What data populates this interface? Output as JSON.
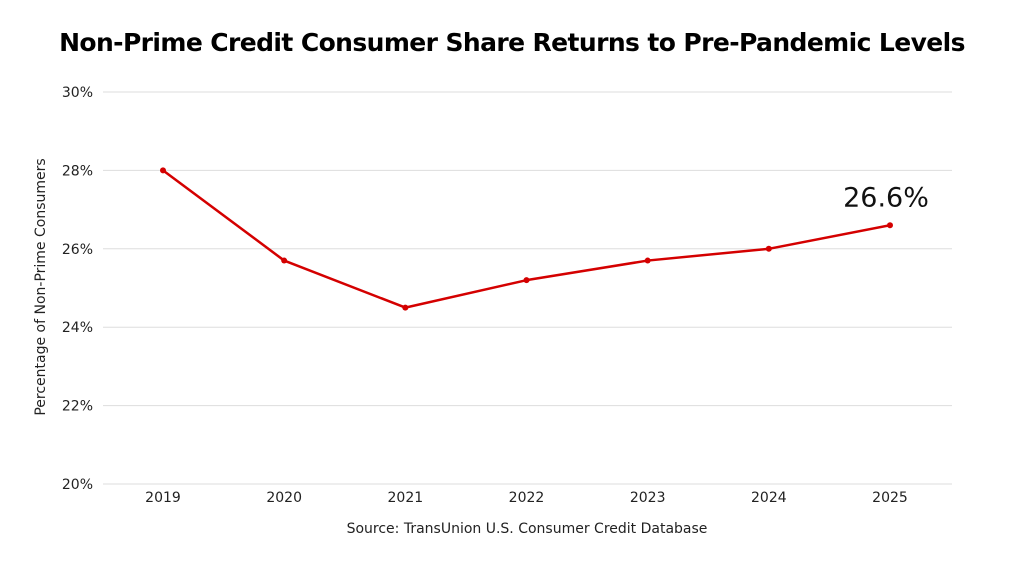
{
  "title": "Non-Prime Credit Consumer Share Returns to Pre-Pandemic Levels",
  "source": "Source: TransUnion U.S. Consumer Credit Database",
  "colors": {
    "line": "#d40000",
    "grid": "#dddddd"
  },
  "chart_data": {
    "type": "line",
    "title": "Non-Prime Credit Consumer Share Returns to Pre-Pandemic Levels",
    "xlabel": "",
    "ylabel": "Percentage of Non-Prime Consumers",
    "x": [
      "2019",
      "2020",
      "2021",
      "2022",
      "2023",
      "2024",
      "2025"
    ],
    "series": [
      {
        "values": [
          28.0,
          25.7,
          24.5,
          25.2,
          25.7,
          26.0,
          26.6
        ]
      }
    ],
    "ylim": [
      20,
      30
    ],
    "yticks": [
      20,
      22,
      24,
      26,
      28,
      30
    ],
    "ytick_labels": [
      "20%",
      "22%",
      "24%",
      "26%",
      "28%",
      "30%"
    ],
    "annotations": [
      {
        "x": "2025",
        "text": "26.6%"
      }
    ],
    "grid": "horizontal",
    "legend": "none"
  }
}
